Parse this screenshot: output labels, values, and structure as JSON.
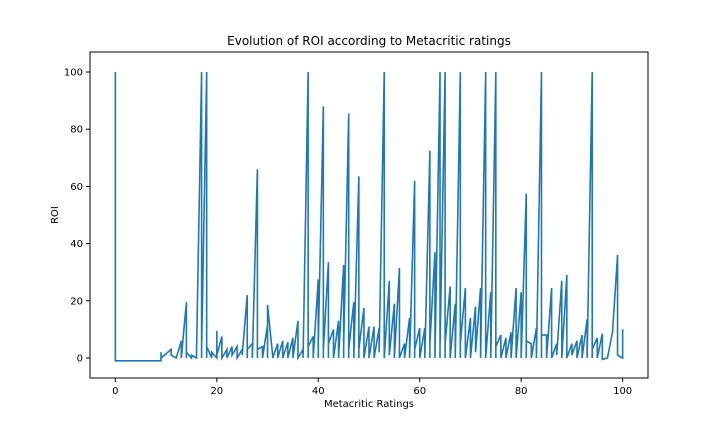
{
  "chart_data": {
    "type": "line",
    "title": "Evolution of ROI according to Metacritic ratings",
    "xlabel": "Metacritic Ratings",
    "ylabel": "ROI",
    "xlim": [
      -5,
      105
    ],
    "ylim": [
      -7,
      107
    ],
    "xticks": [
      0,
      20,
      40,
      60,
      80,
      100
    ],
    "yticks": [
      0,
      20,
      40,
      60,
      80,
      100
    ],
    "grid": false,
    "color": "#1f77b4",
    "series": [
      {
        "x": [
          0,
          0,
          0,
          9,
          9,
          9,
          11,
          11,
          12,
          13,
          13,
          14,
          14,
          14,
          15,
          15,
          16,
          16,
          17,
          17,
          17,
          18,
          18,
          18,
          19,
          19,
          20,
          20,
          20,
          21,
          21,
          22,
          22,
          23,
          23,
          24,
          24,
          25,
          25,
          26,
          26,
          26,
          27,
          27,
          28,
          28,
          28,
          29,
          29,
          30,
          30,
          30,
          31,
          31,
          32,
          32,
          33,
          33,
          34,
          34,
          35,
          35,
          36,
          36,
          37,
          37,
          38,
          38,
          38,
          39,
          39,
          40,
          40,
          40,
          41,
          41,
          41,
          42,
          42,
          42,
          43,
          43,
          44,
          44,
          45,
          45,
          45,
          46,
          46,
          46,
          47,
          47,
          48,
          48,
          48,
          49,
          49,
          50,
          50,
          51,
          51,
          52,
          52,
          53,
          53,
          53,
          54,
          54,
          55,
          55,
          56,
          56,
          56,
          57,
          57,
          58,
          58,
          59,
          59,
          59,
          60,
          60,
          61,
          61,
          62,
          62,
          62,
          63,
          63,
          64,
          64,
          64,
          65,
          65,
          65,
          66,
          66,
          67,
          67,
          68,
          68,
          68,
          69,
          69,
          70,
          70,
          71,
          71,
          72,
          72,
          73,
          73,
          73,
          74,
          74,
          75,
          75,
          75,
          76,
          76,
          77,
          77,
          78,
          78,
          79,
          79,
          80,
          80,
          81,
          81,
          81,
          82,
          82,
          83,
          83,
          84,
          84,
          84,
          85,
          85,
          86,
          86,
          87,
          87,
          88,
          88,
          89,
          89,
          90,
          90,
          91,
          91,
          92,
          92,
          93,
          93,
          94,
          94,
          94,
          95,
          95,
          96,
          96,
          97,
          98,
          99,
          99,
          100,
          100
        ],
        "y": [
          100,
          -1,
          -1,
          -1,
          2,
          0,
          3,
          1,
          0,
          6,
          0,
          19.5,
          0,
          2,
          0,
          1,
          0,
          2,
          100,
          0,
          3,
          100,
          0,
          4,
          0,
          2,
          0,
          9.5,
          1,
          7.5,
          0,
          3,
          0,
          4,
          1,
          4,
          0,
          3,
          1,
          22,
          0,
          3,
          5,
          0,
          66,
          0,
          3,
          4,
          0,
          11.5,
          0,
          18.5,
          1,
          0,
          5,
          0,
          6,
          0,
          5.5,
          0,
          7,
          0,
          13,
          0,
          3,
          0,
          100,
          0,
          4,
          7.5,
          0,
          27.5,
          0,
          5,
          88,
          0,
          3,
          33.5,
          0,
          5,
          10,
          0,
          13,
          0,
          32.5,
          0,
          4,
          85.5,
          0,
          3,
          19.5,
          0,
          63.5,
          0,
          3,
          17.5,
          0,
          11,
          0,
          11,
          0,
          10.5,
          2,
          100,
          50,
          0,
          27,
          1,
          19,
          0,
          31.5,
          2,
          0,
          5,
          0,
          14,
          0,
          62,
          0,
          3,
          10.5,
          0,
          10.5,
          0,
          72.5,
          0,
          5,
          37,
          0,
          100,
          0,
          4,
          100,
          0,
          5,
          25,
          0,
          19,
          0,
          100,
          0,
          5,
          24.5,
          0,
          14,
          0,
          18,
          2,
          24.5,
          0,
          100,
          5,
          0,
          23,
          0,
          100,
          0,
          4,
          8,
          0,
          7,
          0,
          9,
          0,
          24.5,
          0,
          23,
          0,
          57.5,
          0,
          6,
          5,
          0,
          10.5,
          0,
          100,
          0,
          8,
          8,
          0,
          24.5,
          0,
          5,
          1,
          27,
          0,
          29,
          0,
          5,
          1,
          6,
          0,
          8,
          0,
          13.5,
          0,
          100,
          0,
          3,
          7,
          0,
          8.5,
          -0.5,
          0,
          9,
          36,
          1,
          0,
          10
        ]
      }
    ]
  }
}
